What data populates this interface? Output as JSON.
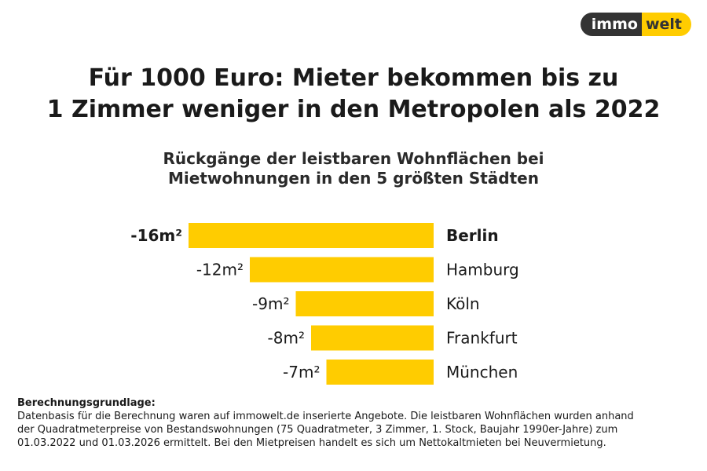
{
  "logo": {
    "part1": "immo",
    "part2": "welt"
  },
  "headline": {
    "line1": "Für 1000 Euro: Mieter bekommen bis zu",
    "line2": "1 Zimmer weniger in den Metropolen als 2022"
  },
  "subtitle": {
    "line1": "Rückgänge der leistbaren Wohnflächen bei",
    "line2": "Mietwohnungen in den 5 größten Städten"
  },
  "colors": {
    "bar": "#FFCC00",
    "text": "#1a1a1a",
    "logo_dark": "#333333",
    "logo_yellow": "#FFCC00"
  },
  "chart_data": {
    "type": "bar",
    "orientation": "horizontal",
    "categories": [
      "Berlin",
      "Hamburg",
      "Köln",
      "Frankfurt",
      "München"
    ],
    "values": [
      -16,
      -12,
      -9,
      -8,
      -7
    ],
    "value_labels": [
      "-16m²",
      "-12m²",
      "-9m²",
      "-8m²",
      "-7m²"
    ],
    "highlight": "Berlin",
    "unit": "m²"
  },
  "footnote": {
    "title": "Berechnungsgrundlage:",
    "line1": "Datenbasis für die Berechnung waren auf immowelt.de inserierte Angebote. Die leistbaren Wohnflächen wurden anhand",
    "line2": "der Quadratmeterpreise von Bestandswohnungen (75 Quadratmeter, 3 Zimmer, 1. Stock, Baujahr 1990er-Jahre) zum",
    "line3": "01.03.2022 und 01.03.2026 ermittelt. Bei den Mietpreisen handelt es sich um Nettokaltmieten bei Neuvermietung."
  }
}
